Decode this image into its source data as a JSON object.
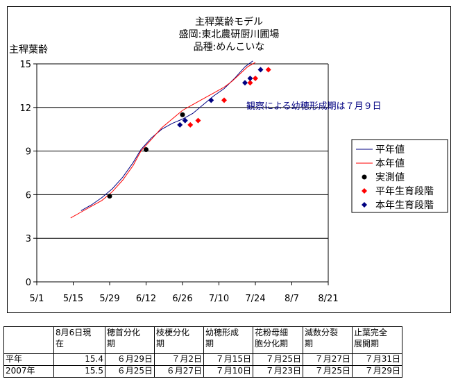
{
  "chart_data": {
    "type": "line",
    "title": [
      "主稈葉齢モデル",
      "盛岡:東北農研厨川圃場",
      "品種:めんこいな"
    ],
    "ylabel": "主稈葉齢",
    "xlabel": "",
    "ylim": [
      0,
      15
    ],
    "yticks": [
      "0",
      "3",
      "6",
      "9",
      "12",
      "15"
    ],
    "xticks": [
      "5/1",
      "5/15",
      "5/29",
      "6/12",
      "6/26",
      "7/10",
      "7/24",
      "8/7",
      "8/21"
    ],
    "grid": "horizontal",
    "legend_position": "right",
    "annotation": "観察による幼穂形成期は７月９日",
    "colors": {
      "heinen": "#000080",
      "honnen": "#ff0000",
      "jissoku": "#000000",
      "heinen_stage": "#ff0000",
      "honnen_stage": "#000080"
    },
    "series": [
      {
        "name": "平年値",
        "kind": "line",
        "color": "#000080",
        "points": [
          [
            17,
            4.9
          ],
          [
            21,
            5.3
          ],
          [
            25,
            5.8
          ],
          [
            29,
            6.4
          ],
          [
            33,
            7.2
          ],
          [
            37,
            8.2
          ],
          [
            40,
            9.1
          ],
          [
            44,
            9.9
          ],
          [
            48,
            10.5
          ],
          [
            52,
            10.9
          ],
          [
            56,
            11.2
          ],
          [
            60,
            11.6
          ],
          [
            64,
            12.2
          ],
          [
            68,
            12.8
          ],
          [
            72,
            13.3
          ],
          [
            76,
            14.0
          ],
          [
            80,
            14.8
          ],
          [
            83,
            15.2
          ]
        ]
      },
      {
        "name": "本年値",
        "kind": "line",
        "color": "#ff0000",
        "points": [
          [
            13,
            4.4
          ],
          [
            17,
            4.8
          ],
          [
            21,
            5.2
          ],
          [
            25,
            5.6
          ],
          [
            29,
            6.2
          ],
          [
            33,
            7.0
          ],
          [
            37,
            8.0
          ],
          [
            40,
            9.0
          ],
          [
            44,
            9.8
          ],
          [
            48,
            10.6
          ],
          [
            52,
            11.2
          ],
          [
            56,
            11.8
          ],
          [
            60,
            12.2
          ],
          [
            64,
            12.6
          ],
          [
            68,
            13.0
          ],
          [
            72,
            13.4
          ],
          [
            75,
            13.8
          ],
          [
            78,
            14.3
          ],
          [
            81,
            14.8
          ],
          [
            84,
            15.1
          ]
        ]
      },
      {
        "name": "実測値",
        "kind": "circle",
        "color": "#000000",
        "points": [
          [
            28,
            5.9
          ],
          [
            42,
            9.1
          ],
          [
            56,
            11.5
          ]
        ]
      },
      {
        "name": "平年生育段階",
        "kind": "diamond",
        "color": "#ff0000",
        "points": [
          [
            59,
            10.8
          ],
          [
            62,
            11.1
          ],
          [
            72,
            12.5
          ],
          [
            82,
            13.7
          ],
          [
            84,
            14.0
          ],
          [
            89,
            14.6
          ]
        ]
      },
      {
        "name": "本年生育段階",
        "kind": "diamond",
        "color": "#000080",
        "points": [
          [
            55,
            10.8
          ],
          [
            57,
            11.1
          ],
          [
            67,
            12.5
          ],
          [
            80,
            13.7
          ],
          [
            82,
            14.0
          ],
          [
            86,
            14.6
          ]
        ]
      }
    ]
  },
  "table": {
    "headers": [
      "",
      "8月6日現在",
      "穂首分化期",
      "枝梗分化期",
      "幼穂形成期",
      "花粉母細胞分化期",
      "減数分裂期",
      "止葉完全展開期"
    ],
    "header_lines": [
      [
        "",
        ""
      ],
      [
        "8月6日現",
        "在"
      ],
      [
        "穂首分化",
        "期"
      ],
      [
        "枝梗分化",
        "期"
      ],
      [
        "幼穂形成",
        "期"
      ],
      [
        "花粉母細",
        "胞分化期"
      ],
      [
        "減数分裂",
        "期"
      ],
      [
        "止葉完全",
        "展開期"
      ]
    ],
    "rows": [
      [
        "平年",
        "15.4",
        "６月29日",
        "７月2日",
        "７月15日",
        "７月25日",
        "７月27日",
        "７月31日"
      ],
      [
        "2007年",
        "15.5",
        "６月25日",
        "６月27日",
        "７月10日",
        "７月23日",
        "７月25日",
        "７月29日"
      ]
    ]
  }
}
